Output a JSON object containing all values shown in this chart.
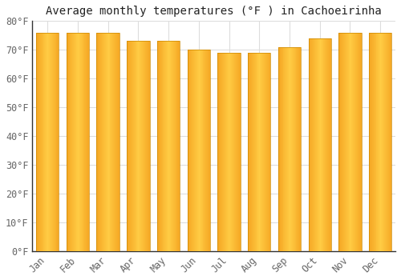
{
  "title": "Average monthly temperatures (°F ) in Cachoeirinha",
  "months": [
    "Jan",
    "Feb",
    "Mar",
    "Apr",
    "May",
    "Jun",
    "Jul",
    "Aug",
    "Sep",
    "Oct",
    "Nov",
    "Dec"
  ],
  "values": [
    76,
    76,
    76,
    73,
    73,
    70,
    69,
    69,
    71,
    74,
    76,
    76
  ],
  "bar_color_center": "#FFCC44",
  "bar_color_edge": "#F5A623",
  "background_color": "#FFFFFF",
  "plot_bg_color": "#FFFFFF",
  "grid_color": "#DDDDDD",
  "spine_color": "#888888",
  "tick_color": "#666666",
  "ylim": [
    0,
    80
  ],
  "ytick_step": 10,
  "title_fontsize": 10,
  "tick_fontsize": 8.5,
  "bar_width": 0.75
}
